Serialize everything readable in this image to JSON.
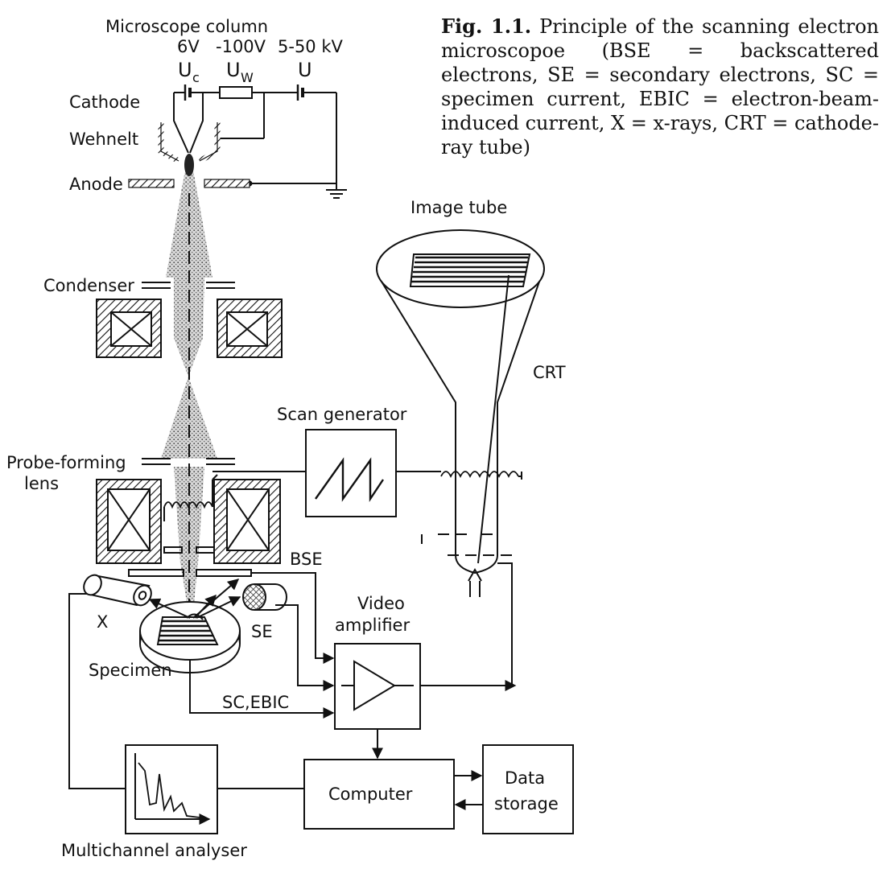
{
  "caption": {
    "label": "Fig. 1.1.",
    "text": "Principle of the scanning electron microscopoe (BSE = backscattered electrons, SE = secondary electrons, SC = specimen current, EBIC = electron-beam-induced current, X = x-rays, CRT = cathode-ray tube)"
  },
  "labels": {
    "microscope_column": "Microscope column",
    "v6": "6V",
    "v100": "-100V",
    "v5_50": "5-50 kV",
    "uc": "U",
    "uc_sub": "c",
    "uw": "U",
    "uw_sub": "W",
    "u": "U",
    "cathode": "Cathode",
    "wehnelt": "Wehnelt",
    "anode": "Anode",
    "image_tube": "Image tube",
    "condenser": "Condenser",
    "crt": "CRT",
    "scan_generator": "Scan generator",
    "probe_forming_1": "Probe-forming",
    "probe_forming_2": "lens",
    "bse": "BSE",
    "x": "X",
    "se": "SE",
    "video_1": "Video",
    "video_2": "amplifier",
    "specimen": "Specimen",
    "sc_ebic": "SC,EBIC",
    "computer": "Computer",
    "data_1": "Data",
    "data_2": "storage",
    "multichannel": "Multichannel analyser"
  }
}
